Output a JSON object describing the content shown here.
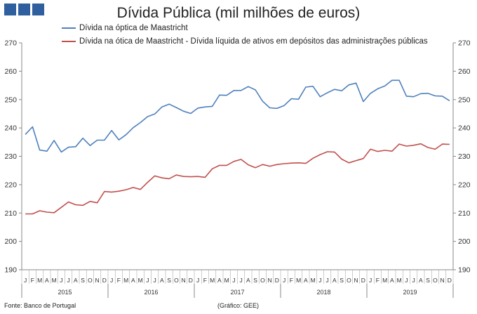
{
  "header": {
    "title": "Dívida Pública (mil milhões de euros)"
  },
  "footer": {
    "source": "Fonte: Banco de Portugal",
    "credit": "(Gráfico: GEE)"
  },
  "chart_data": {
    "type": "line",
    "title": "Dívida Pública (mil milhões de euros)",
    "xlabel": "",
    "ylabel": "",
    "ylim": [
      190,
      270
    ],
    "yticks": [
      190,
      200,
      210,
      220,
      230,
      240,
      250,
      260,
      270
    ],
    "grid": false,
    "legend": "top",
    "month_labels": [
      "J",
      "F",
      "M",
      "A",
      "M",
      "J",
      "J",
      "A",
      "S",
      "O",
      "N",
      "D"
    ],
    "years": [
      "2015",
      "2016",
      "2017",
      "2018",
      "2019"
    ],
    "x": [
      "2015-01",
      "2015-02",
      "2015-03",
      "2015-04",
      "2015-05",
      "2015-06",
      "2015-07",
      "2015-08",
      "2015-09",
      "2015-10",
      "2015-11",
      "2015-12",
      "2016-01",
      "2016-02",
      "2016-03",
      "2016-04",
      "2016-05",
      "2016-06",
      "2016-07",
      "2016-08",
      "2016-09",
      "2016-10",
      "2016-11",
      "2016-12",
      "2017-01",
      "2017-02",
      "2017-03",
      "2017-04",
      "2017-05",
      "2017-06",
      "2017-07",
      "2017-08",
      "2017-09",
      "2017-10",
      "2017-11",
      "2017-12",
      "2018-01",
      "2018-02",
      "2018-03",
      "2018-04",
      "2018-05",
      "2018-06",
      "2018-07",
      "2018-08",
      "2018-09",
      "2018-10",
      "2018-11",
      "2018-12",
      "2019-01",
      "2019-02",
      "2019-03",
      "2019-04",
      "2019-05",
      "2019-06",
      "2019-07",
      "2019-08",
      "2019-09",
      "2019-10",
      "2019-11",
      "2019-12"
    ],
    "series": [
      {
        "name": "Dívida na óptica de Maastricht",
        "color": "#4f81bd",
        "values": [
          237.7,
          240.4,
          232.2,
          231.8,
          235.6,
          231.5,
          233.2,
          233.4,
          236.4,
          233.8,
          235.7,
          235.7,
          239.1,
          235.8,
          237.6,
          240.1,
          241.9,
          244.0,
          244.9,
          247.4,
          248.4,
          247.2,
          245.9,
          245.1,
          247.0,
          247.4,
          247.6,
          251.6,
          251.5,
          253.2,
          253.2,
          254.6,
          253.4,
          249.4,
          247.1,
          246.9,
          247.9,
          250.3,
          250.1,
          254.4,
          254.7,
          251.0,
          252.4,
          253.6,
          253.1,
          255.2,
          255.8,
          249.3,
          252.2,
          253.8,
          254.8,
          256.8,
          256.8,
          251.2,
          251.0,
          252.1,
          252.2,
          251.3,
          251.2,
          249.6
        ]
      },
      {
        "name": "Dívida na ótica de Maastricht - Dívida líquida de ativos em depósitos das administrações públicas",
        "color": "#c0504d",
        "values": [
          209.7,
          209.7,
          210.8,
          210.3,
          210.1,
          212.0,
          213.9,
          212.9,
          212.7,
          214.1,
          213.6,
          217.6,
          217.4,
          217.7,
          218.2,
          219.0,
          218.3,
          220.8,
          223.1,
          222.4,
          222.1,
          223.4,
          222.9,
          222.8,
          222.9,
          222.6,
          225.6,
          226.8,
          226.8,
          228.2,
          228.9,
          227.0,
          226.0,
          227.1,
          226.5,
          227.1,
          227.4,
          227.6,
          227.7,
          227.5,
          229.3,
          230.6,
          231.6,
          231.5,
          229.0,
          227.7,
          228.5,
          229.2,
          232.5,
          231.7,
          232.1,
          231.8,
          234.3,
          233.6,
          233.9,
          234.4,
          233.1,
          232.5,
          234.3,
          234.2
        ]
      }
    ]
  }
}
